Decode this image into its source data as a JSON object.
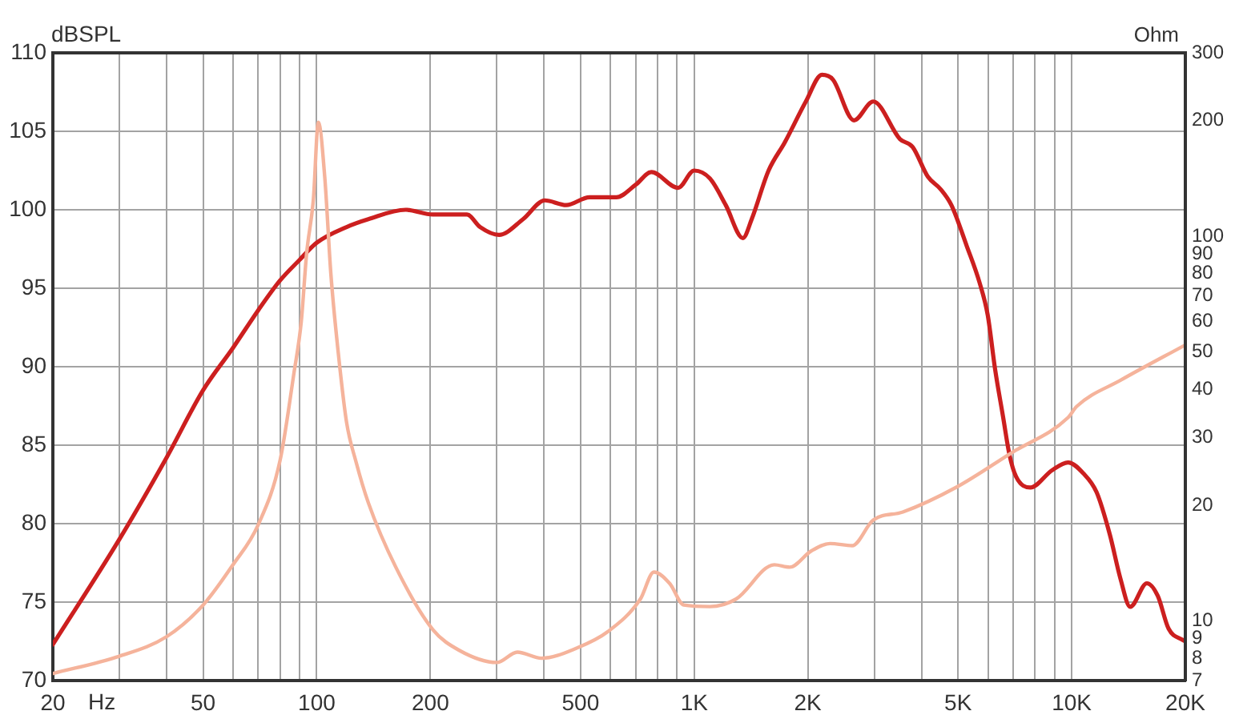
{
  "chart_data": [
    {
      "type": "line",
      "xlabel": "Hz",
      "ylabel": "dBSPL",
      "log": "x",
      "grid": true,
      "marker": "none",
      "line_style": "solid",
      "xlim": [
        20,
        20000
      ],
      "xticks": [
        {
          "value": 20,
          "label": "20"
        },
        {
          "value": 30,
          "label": null
        },
        {
          "value": 40,
          "label": null
        },
        50,
        {
          "value": 60,
          "label": null
        },
        {
          "value": 70,
          "label": null
        },
        {
          "value": 80,
          "label": null
        },
        {
          "value": 90,
          "label": null
        },
        100,
        200,
        {
          "value": 300,
          "label": null
        },
        {
          "value": 400,
          "label": null
        },
        500,
        {
          "value": 600,
          "label": null
        },
        {
          "value": 700,
          "label": null
        },
        {
          "value": 800,
          "label": null
        },
        {
          "value": 900,
          "label": null
        },
        {
          "value": 1000,
          "label": "1K"
        },
        {
          "value": 2000,
          "label": "2K"
        },
        {
          "value": 3000,
          "label": null
        },
        {
          "value": 4000,
          "label": null
        },
        {
          "value": 5000,
          "label": "5K"
        },
        {
          "value": 6000,
          "label": null
        },
        {
          "value": 7000,
          "label": null
        },
        {
          "value": 8000,
          "label": null
        },
        {
          "value": 9000,
          "label": null
        },
        {
          "value": 10000,
          "label": "10K"
        },
        {
          "value": 20000,
          "label": "20K"
        }
      ],
      "ylim": [
        70,
        110
      ],
      "yticks": [
        70,
        75,
        80,
        85,
        90,
        95,
        100,
        105,
        110
      ],
      "series": [
        {
          "color": "#cc1f1f",
          "x": [
            20,
            30,
            40,
            50,
            60,
            70,
            80,
            90,
            100,
            120,
            137,
            172,
            203,
            250,
            271,
            304,
            352,
            402,
            458,
            528,
            622,
            700,
            770,
            906,
            1000,
            1100,
            1212,
            1346,
            1420,
            1574,
            1738,
            1976,
            2180,
            2330,
            2650,
            2980,
            3510,
            3790,
            4160,
            4500,
            4800,
            5270,
            5710,
            5990,
            6270,
            6580,
            6840,
            7120,
            7770,
            8870,
            9780,
            10740,
            11640,
            12620,
            13460,
            14290,
            15820,
            16900,
            18060,
            19640,
            20000
          ],
          "values": [
            72.3,
            79.0,
            84.2,
            88.5,
            91.2,
            93.6,
            95.5,
            96.8,
            97.9,
            98.9,
            99.4,
            100.0,
            99.7,
            99.7,
            98.9,
            98.4,
            99.4,
            100.6,
            100.3,
            100.8,
            100.8,
            101.6,
            102.4,
            101.4,
            102.5,
            102.0,
            100.3,
            98.2,
            99.4,
            102.5,
            104.3,
            106.9,
            108.6,
            108.3,
            105.7,
            106.9,
            104.5,
            104.0,
            102.1,
            101.3,
            100.3,
            97.7,
            95.3,
            93.3,
            89.8,
            86.8,
            84.4,
            83.0,
            82.3,
            83.4,
            83.9,
            83.2,
            82.0,
            79.3,
            76.5,
            74.7,
            76.2,
            75.4,
            73.3,
            72.6,
            72.5
          ]
        }
      ]
    },
    {
      "type": "line",
      "ylabel": "Ohm",
      "log": "xy",
      "marker": "none",
      "line_style": "solid",
      "tick_labels": "y",
      "xlim": [
        20,
        20000
      ],
      "ylim": [
        7,
        300
      ],
      "yticks": [
        7,
        8,
        9,
        10,
        20,
        30,
        40,
        50,
        60,
        70,
        80,
        90,
        100,
        200,
        300
      ],
      "series": [
        {
          "color": "#f5b39b",
          "x": [
            20,
            30,
            40,
            50,
            60,
            70,
            80,
            87,
            91,
            94,
            98,
            101,
            105,
            109,
            114,
            120,
            127,
            137,
            162,
            203,
            238,
            300,
            340,
            394,
            488,
            592,
            720,
            782,
            862,
            938,
            1100,
            1290,
            1630,
            1790,
            2040,
            2290,
            2620,
            2980,
            3570,
            4960,
            6940,
            9780,
            10300,
            13500,
            20000
          ],
          "values": [
            7.3,
            8.1,
            9.1,
            11.0,
            14.0,
            17.8,
            26.2,
            44,
            60,
            90,
            125,
            198,
            143,
            80,
            50,
            32.8,
            26,
            20.3,
            13.8,
            9.5,
            8.4,
            7.8,
            8.3,
            8.0,
            8.5,
            9.4,
            11.4,
            13.4,
            12.5,
            11.0,
            10.9,
            11.4,
            14.0,
            13.8,
            15.2,
            15.9,
            15.7,
            18.3,
            19.2,
            22.3,
            27.4,
            33.8,
            36.1,
            42.3,
            52.2
          ]
        }
      ]
    }
  ]
}
